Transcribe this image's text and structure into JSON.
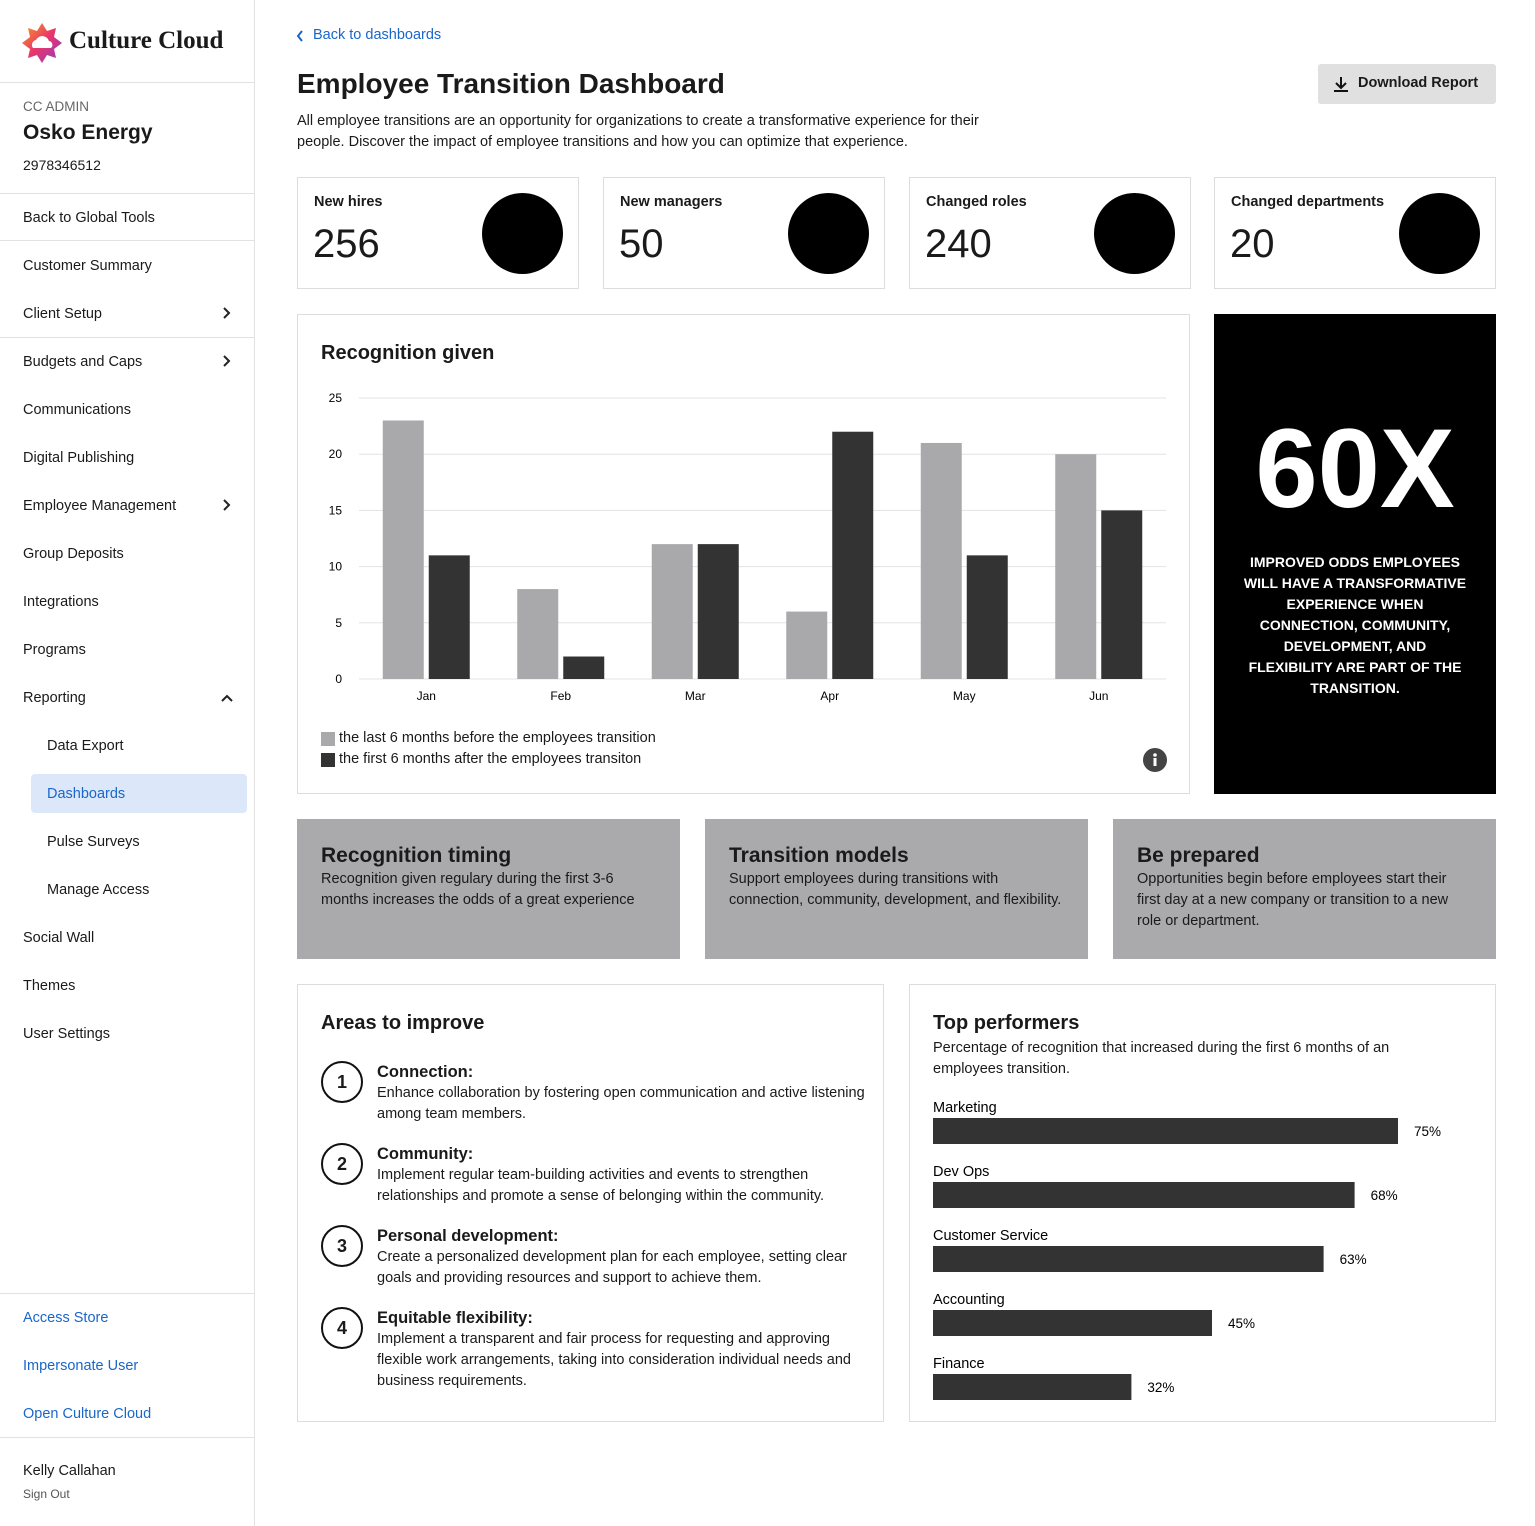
{
  "sidebar": {
    "brand": "Culture Cloud",
    "role": "CC ADMIN",
    "org": "Osko Energy",
    "org_id": "2978346512",
    "nav": [
      "Back to Global Tools",
      "Customer Summary",
      "Client Setup",
      "Budgets and Caps",
      "Communications",
      "Digital Publishing",
      "Employee Management",
      "Group Deposits",
      "Integrations",
      "Programs",
      "Reporting",
      "Data Export",
      "Dashboards",
      "Pulse Surveys",
      "Manage Access",
      "Social Wall",
      "Themes",
      "User Settings"
    ],
    "links": [
      "Access Store",
      "Impersonate User",
      "Open Culture Cloud"
    ],
    "user": "Kelly Callahan",
    "sign_out": "Sign Out"
  },
  "header": {
    "back": "Back to dashboards",
    "title": "Employee Transition Dashboard",
    "description": "All employee transitions are an opportunity for organizations to create a transformative experience for their people. Discover the impact of employee transitions and how you can optimize that experience.",
    "button": "Download Report"
  },
  "kpis": [
    {
      "label": "New hires",
      "value": 256
    },
    {
      "label": "New managers",
      "value": 50
    },
    {
      "label": "Changed roles",
      "value": 240
    },
    {
      "label": "Changed departments",
      "value": 20
    }
  ],
  "highlight": {
    "value": "60X",
    "text": "IMPROVED ODDS EMPLOYEES WILL HAVE A TRANSFORMATIVE EXPERIENCE WHEN CONNECTION, COMMUNITY, DEVELOPMENT, AND FLEXIBILITY ARE PART OF THE TRANSITION."
  },
  "tips": [
    {
      "title": "Recognition timing",
      "text": "Recognition given regulary during the first 3-6 months increases the odds of a great experience"
    },
    {
      "title": "Transition models",
      "text": "Support employees during transitions with connection, community, development, and flexibility."
    },
    {
      "title": "Be prepared",
      "text": "Opportunities begin before employees start their first day at a new company or transition to a new role or department."
    }
  ],
  "areas": {
    "title": "Areas to improve",
    "items": [
      {
        "number": 1,
        "heading": "Connection:",
        "text": "Enhance collaboration by fostering open communication and active listening among team members."
      },
      {
        "number": 2,
        "heading": "Community:",
        "text": "Implement regular team-building activities and events to strengthen relationships and promote a sense of belonging within the community."
      },
      {
        "number": 3,
        "heading": "Personal development:",
        "text": "Create a personalized development plan for each employee, setting clear goals and providing resources and support to achieve them."
      },
      {
        "number": 4,
        "heading": "Equitable flexibility:",
        "text": "Implement a transparent and fair process for requesting and approving flexible work arrangements, taking into consideration individual needs and business requirements."
      }
    ]
  },
  "chart_data": [
    {
      "type": "bar",
      "title": "Recognition given",
      "categories": [
        "Jan",
        "Feb",
        "Mar",
        "Apr",
        "May",
        "Jun"
      ],
      "series": [
        {
          "name": "the last 6 months before the employees transition",
          "color": "#a9a9ac",
          "values": [
            23,
            8,
            12,
            6,
            21,
            20
          ]
        },
        {
          "name": "the first 6 months after the employees transiton",
          "color": "#333333",
          "values": [
            11,
            2,
            12,
            22,
            11,
            15
          ]
        }
      ],
      "ylim": [
        0,
        25
      ],
      "yticks": [
        0,
        5,
        10,
        15,
        20,
        25
      ],
      "grid": true
    },
    {
      "type": "barh",
      "title": "Top performers",
      "subtitle": "Percentage of recognition that increased during the first 6 months of an employees transition.",
      "categories": [
        "Marketing",
        "Dev Ops",
        "Customer Service",
        "Accounting",
        "Finance"
      ],
      "values": [
        75,
        68,
        63,
        45,
        32
      ],
      "value_labels": [
        "75%",
        "68%",
        "63%",
        "45%",
        "32%"
      ],
      "color": "#333333"
    }
  ]
}
